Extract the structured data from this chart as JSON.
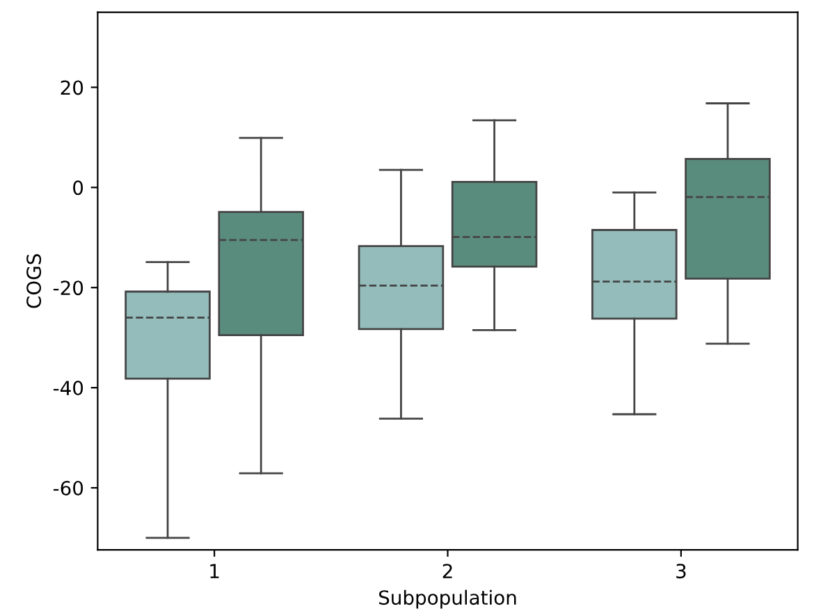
{
  "chart_data": {
    "type": "box",
    "xlabel": "Subpopulation",
    "ylabel": "COGS",
    "categories": [
      "1",
      "2",
      "3"
    ],
    "ylim": [
      -72.4,
      35
    ],
    "yticks": [
      -60,
      -40,
      -20,
      0,
      20
    ],
    "grid": false,
    "legend": false,
    "series": [
      {
        "color": "#93bcbb",
        "boxes": [
          {
            "low": -70,
            "q1": -38.2,
            "median": -26,
            "q3": -20.8,
            "high": -14.9
          },
          {
            "low": -46.2,
            "q1": -28.3,
            "median": -19.6,
            "q3": -11.7,
            "high": 3.5
          },
          {
            "low": -45.3,
            "q1": -26.2,
            "median": -18.8,
            "q3": -8.5,
            "high": -1
          }
        ]
      },
      {
        "color": "#5a8c7e",
        "boxes": [
          {
            "low": -57.1,
            "q1": -29.5,
            "median": -10.5,
            "q3": -4.9,
            "high": 9.9
          },
          {
            "low": -28.5,
            "q1": -15.8,
            "median": -9.9,
            "q3": 1.1,
            "high": 13.4
          },
          {
            "low": -31.2,
            "q1": -18.2,
            "median": -1.9,
            "q3": 5.7,
            "high": 16.8
          }
        ]
      }
    ]
  }
}
